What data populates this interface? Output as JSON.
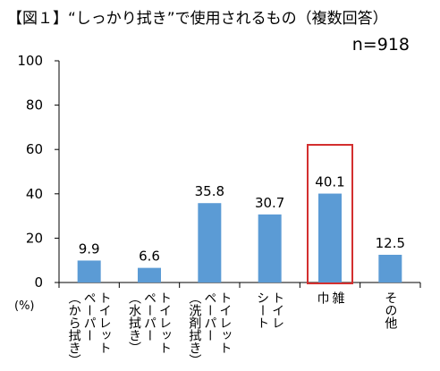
{
  "title": "【図１】“しっかり拭き”で使用されるもの（複数回答）",
  "sample_note": "n=918",
  "colors": {
    "bar": "#5b9bd5",
    "highlight": "#d32f2f",
    "axis": "#000000"
  },
  "chart_data": {
    "type": "bar",
    "title": "【図１】“しっかり拭き”で使用されるもの（複数回答）",
    "ylabel": "(%)",
    "ylim": [
      0,
      100
    ],
    "yticks": [
      "0",
      "20",
      "40",
      "60",
      "80",
      "100"
    ],
    "categories": [
      [
        "トイレット",
        "ペーパー",
        "（から拭き）"
      ],
      [
        "トイレット",
        "ペーパー",
        "（水拭き）"
      ],
      [
        "トイレット",
        "ペーパー",
        "（洗剤拭き）"
      ],
      [
        "トイレ",
        "シート"
      ],
      [
        "雑",
        "巾"
      ],
      [
        "その他"
      ]
    ],
    "values": [
      9.9,
      6.6,
      35.8,
      30.7,
      40.1,
      12.5
    ],
    "value_labels": [
      "9.9",
      "6.6",
      "35.8",
      "30.7",
      "40.1",
      "12.5"
    ],
    "highlighted_category_index": 4,
    "grid": false,
    "legend": "none"
  }
}
